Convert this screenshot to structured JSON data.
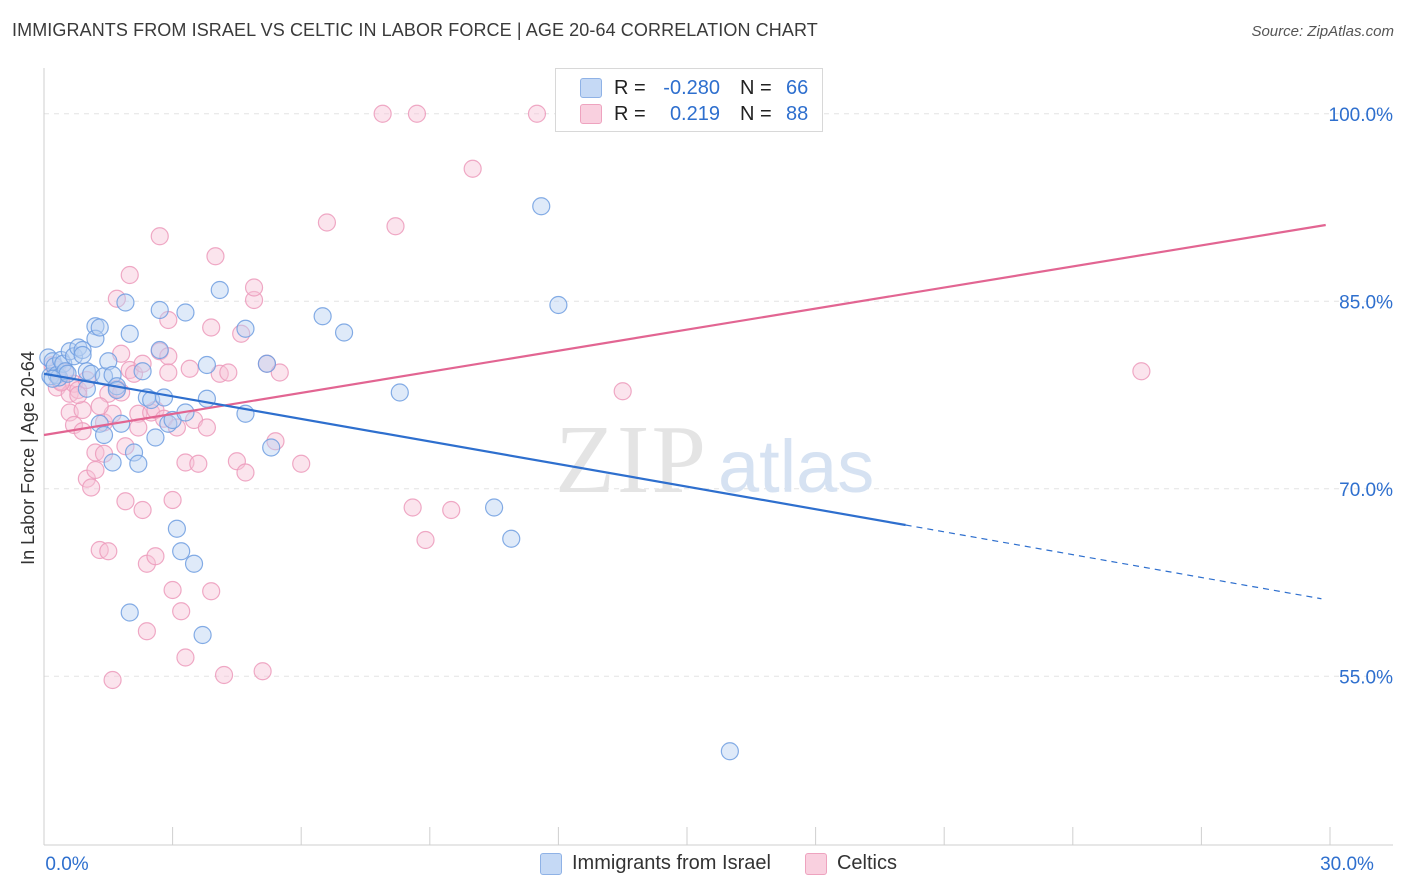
{
  "header": {
    "title": "IMMIGRANTS FROM ISRAEL VS CELTIC IN LABOR FORCE | AGE 20-64 CORRELATION CHART",
    "source": "Source: ZipAtlas.com"
  },
  "legend": {
    "rows": [
      {
        "r_label": "R =",
        "r_value": "-0.280",
        "n_label": "N =",
        "n_value": "66"
      },
      {
        "r_label": "R =",
        "r_value": "0.219",
        "n_label": "N =",
        "n_value": "88"
      }
    ]
  },
  "bottom_legend": {
    "items": [
      {
        "label": "Immigrants from Israel"
      },
      {
        "label": "Celtics"
      }
    ]
  },
  "watermark": {
    "zip": "ZIP",
    "atlas": "atlas"
  },
  "colors": {
    "blue": "#2e6fce",
    "blue_fill": "#b8d0f2",
    "pink": "#e26592",
    "pink_fill": "#f7c3d6",
    "grid": "#e3e3e3",
    "tick_label": "#2e6fce"
  },
  "chart_data": {
    "type": "scatter",
    "title": "IMMIGRANTS FROM ISRAEL VS CELTIC IN LABOR FORCE | AGE 20-64 CORRELATION CHART",
    "xlabel": "",
    "ylabel": "In Labor Force | Age 20-64",
    "xlim": [
      0,
      30
    ],
    "ylim": [
      41.5,
      103.5
    ],
    "x_tick_labels": [
      {
        "value": 0,
        "label": "0.0%"
      },
      {
        "value": 30,
        "label": "30.0%"
      }
    ],
    "y_tick_labels": [
      {
        "value": 100,
        "label": "100.0%"
      },
      {
        "value": 85,
        "label": "85.0%"
      },
      {
        "value": 70,
        "label": "70.0%"
      },
      {
        "value": 55,
        "label": "55.0%"
      }
    ],
    "series": [
      {
        "name": "Immigrants from Israel",
        "color": "#2e6fce",
        "trend": {
          "x0": 0,
          "y0": 79.2,
          "x1": 20.1,
          "y1": 67.1,
          "dash_x1": 29.8,
          "dash_y1": 61.2
        },
        "points": [
          [
            0.1,
            80.5
          ],
          [
            0.15,
            79.0
          ],
          [
            0.2,
            80.2
          ],
          [
            0.25,
            79.8
          ],
          [
            0.3,
            79.1
          ],
          [
            0.35,
            78.9
          ],
          [
            0.4,
            80.3
          ],
          [
            0.45,
            80.0
          ],
          [
            0.5,
            79.4
          ],
          [
            0.55,
            79.2
          ],
          [
            0.6,
            81.0
          ],
          [
            0.7,
            80.6
          ],
          [
            0.8,
            81.3
          ],
          [
            0.9,
            81.1
          ],
          [
            1.0,
            78.0
          ],
          [
            1.0,
            79.4
          ],
          [
            1.1,
            79.2
          ],
          [
            1.2,
            83.0
          ],
          [
            1.2,
            82.0
          ],
          [
            1.3,
            82.9
          ],
          [
            1.3,
            75.2
          ],
          [
            1.4,
            79.0
          ],
          [
            1.4,
            74.3
          ],
          [
            1.5,
            80.2
          ],
          [
            1.6,
            72.1
          ],
          [
            1.6,
            79.1
          ],
          [
            1.7,
            78.2
          ],
          [
            1.7,
            77.9
          ],
          [
            1.8,
            75.2
          ],
          [
            1.9,
            84.9
          ],
          [
            2.0,
            60.1
          ],
          [
            2.0,
            82.4
          ],
          [
            2.1,
            72.9
          ],
          [
            2.2,
            72.0
          ],
          [
            2.3,
            79.4
          ],
          [
            2.4,
            77.3
          ],
          [
            2.5,
            77.1
          ],
          [
            2.6,
            74.1
          ],
          [
            2.7,
            84.3
          ],
          [
            2.7,
            81.1
          ],
          [
            2.8,
            77.3
          ],
          [
            2.9,
            75.2
          ],
          [
            3.0,
            75.5
          ],
          [
            3.1,
            66.8
          ],
          [
            3.2,
            65.0
          ],
          [
            3.3,
            84.1
          ],
          [
            3.3,
            76.1
          ],
          [
            3.5,
            64.0
          ],
          [
            3.7,
            58.3
          ],
          [
            3.8,
            77.2
          ],
          [
            3.8,
            79.9
          ],
          [
            4.1,
            85.9
          ],
          [
            4.7,
            76.0
          ],
          [
            4.7,
            82.8
          ],
          [
            5.2,
            80.0
          ],
          [
            5.3,
            73.3
          ],
          [
            6.5,
            83.8
          ],
          [
            7.0,
            82.5
          ],
          [
            8.3,
            77.7
          ],
          [
            10.5,
            68.5
          ],
          [
            10.9,
            66.0
          ],
          [
            11.6,
            92.6
          ],
          [
            12.0,
            84.7
          ],
          [
            16.0,
            49.0
          ],
          [
            0.2,
            78.8
          ],
          [
            0.9,
            80.7
          ]
        ]
      },
      {
        "name": "Celtics",
        "color": "#e26592",
        "trend": {
          "x0": 0,
          "y0": 74.3,
          "x1": 29.9,
          "y1": 91.1
        },
        "points": [
          [
            0.2,
            79.9
          ],
          [
            0.3,
            79.5
          ],
          [
            0.3,
            78.1
          ],
          [
            0.4,
            78.6
          ],
          [
            0.5,
            79.3
          ],
          [
            0.6,
            77.6
          ],
          [
            0.7,
            78.4
          ],
          [
            0.6,
            76.1
          ],
          [
            0.7,
            75.1
          ],
          [
            0.8,
            77.9
          ],
          [
            0.9,
            76.3
          ],
          [
            0.9,
            74.6
          ],
          [
            1.0,
            78.7
          ],
          [
            1.0,
            70.8
          ],
          [
            1.1,
            70.1
          ],
          [
            1.2,
            71.5
          ],
          [
            1.2,
            72.9
          ],
          [
            1.3,
            65.1
          ],
          [
            1.4,
            72.8
          ],
          [
            1.4,
            75.3
          ],
          [
            1.5,
            77.6
          ],
          [
            1.5,
            65.0
          ],
          [
            1.6,
            54.7
          ],
          [
            1.6,
            76.0
          ],
          [
            1.7,
            78.0
          ],
          [
            1.7,
            85.2
          ],
          [
            1.8,
            80.8
          ],
          [
            1.8,
            77.7
          ],
          [
            1.9,
            69.0
          ],
          [
            1.9,
            73.4
          ],
          [
            2.0,
            79.5
          ],
          [
            2.0,
            87.1
          ],
          [
            2.1,
            79.2
          ],
          [
            2.2,
            76.0
          ],
          [
            2.2,
            74.9
          ],
          [
            2.3,
            80.0
          ],
          [
            2.3,
            68.3
          ],
          [
            2.4,
            64.0
          ],
          [
            2.4,
            58.6
          ],
          [
            2.5,
            76.1
          ],
          [
            2.6,
            76.3
          ],
          [
            2.6,
            64.6
          ],
          [
            2.7,
            90.2
          ],
          [
            2.7,
            81.0
          ],
          [
            2.8,
            75.6
          ],
          [
            2.9,
            80.6
          ],
          [
            2.9,
            79.3
          ],
          [
            3.0,
            69.1
          ],
          [
            3.0,
            61.9
          ],
          [
            3.1,
            74.9
          ],
          [
            3.2,
            60.2
          ],
          [
            3.3,
            72.1
          ],
          [
            3.3,
            56.5
          ],
          [
            3.5,
            75.5
          ],
          [
            3.6,
            72.0
          ],
          [
            3.8,
            74.9
          ],
          [
            3.9,
            61.8
          ],
          [
            4.0,
            88.6
          ],
          [
            4.1,
            79.2
          ],
          [
            4.2,
            55.1
          ],
          [
            4.3,
            79.3
          ],
          [
            4.5,
            72.2
          ],
          [
            4.6,
            82.4
          ],
          [
            4.7,
            71.3
          ],
          [
            4.9,
            85.1
          ],
          [
            5.1,
            55.4
          ],
          [
            5.2,
            80.0
          ],
          [
            5.4,
            73.8
          ],
          [
            5.5,
            79.3
          ],
          [
            6.0,
            72.0
          ],
          [
            6.6,
            91.3
          ],
          [
            7.9,
            100.0
          ],
          [
            8.2,
            91.0
          ],
          [
            8.6,
            68.5
          ],
          [
            8.7,
            100.0
          ],
          [
            8.9,
            65.9
          ],
          [
            9.5,
            68.3
          ],
          [
            10.0,
            95.6
          ],
          [
            11.5,
            100.0
          ],
          [
            13.5,
            77.8
          ],
          [
            25.6,
            79.4
          ],
          [
            0.4,
            78.5
          ],
          [
            0.8,
            77.5
          ],
          [
            1.3,
            76.6
          ],
          [
            2.9,
            83.5
          ],
          [
            3.9,
            82.9
          ],
          [
            4.9,
            86.1
          ],
          [
            3.4,
            79.6
          ]
        ]
      }
    ]
  }
}
